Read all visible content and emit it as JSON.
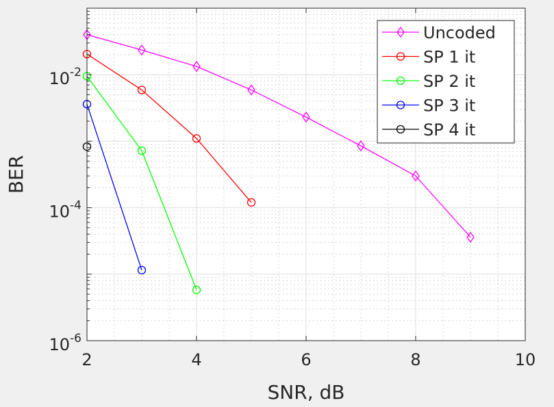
{
  "chart_data": {
    "type": "line",
    "title": "",
    "xlabel": "SNR, dB",
    "ylabel": "BER",
    "xlim": [
      2,
      10
    ],
    "ylim": [
      1e-06,
      0.1
    ],
    "yscale": "log",
    "grid": true,
    "legend_position": "top-right",
    "xticks": [
      "2",
      "4",
      "6",
      "8",
      "10"
    ],
    "xtick_values": [
      2,
      4,
      6,
      8,
      10
    ],
    "yticks": [
      {
        "base": "10",
        "exp": "-2",
        "value": 0.01
      },
      {
        "base": "10",
        "exp": "-4",
        "value": 0.0001
      },
      {
        "base": "10",
        "exp": "-6",
        "value": 1e-06
      }
    ],
    "series": [
      {
        "name": "Uncoded",
        "color": "#ff00ff",
        "marker": "diamond",
        "x": [
          2,
          3,
          4,
          5,
          6,
          7,
          8,
          9
        ],
        "y": [
          0.04,
          0.0235,
          0.0133,
          0.0059,
          0.0023,
          0.00085,
          0.0003,
          3.6e-05
        ]
      },
      {
        "name": "SP 1 it",
        "color": "#ff0000",
        "marker": "circle",
        "x": [
          2,
          3,
          4,
          5
        ],
        "y": [
          0.0204,
          0.0059,
          0.0011,
          0.00012
        ]
      },
      {
        "name": "SP 2 it",
        "color": "#00ff00",
        "marker": "circle",
        "x": [
          2,
          3,
          4
        ],
        "y": [
          0.0095,
          0.00072,
          5.8e-06
        ]
      },
      {
        "name": "SP 3 it",
        "color": "#0000ff",
        "marker": "circle",
        "x": [
          2,
          3
        ],
        "y": [
          0.0036,
          1.15e-05
        ]
      },
      {
        "name": "SP 4 it",
        "color": "#000000",
        "marker": "circle",
        "x": [
          2
        ],
        "y": [
          0.00083
        ]
      }
    ]
  }
}
